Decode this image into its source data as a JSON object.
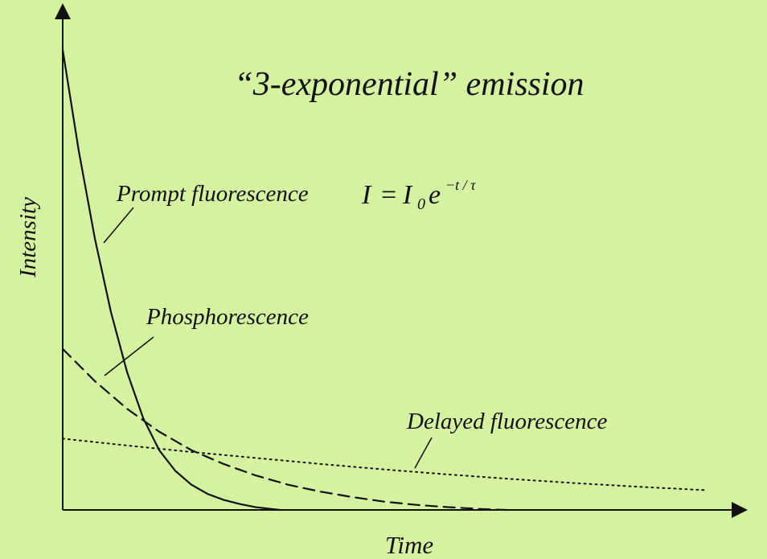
{
  "chart_data": {
    "type": "line",
    "title": "“3-exponential” emission",
    "xlabel": "Time",
    "ylabel": "Intensity",
    "formula": {
      "lhs": "I",
      "eq": "=",
      "base": "I",
      "sub": "0",
      "exp_base": "e",
      "exponent": "−t / τ"
    },
    "x_range": [
      0,
      10
    ],
    "y_range": [
      0,
      1
    ],
    "series": [
      {
        "name": "Prompt fluorescence",
        "style": "solid",
        "x": [
          0,
          0.25,
          0.5,
          0.75,
          1.0,
          1.25,
          1.5,
          1.75,
          2.0,
          2.25,
          2.5,
          2.75,
          3.0,
          3.25,
          3.38
        ],
        "y": [
          1.0,
          0.78,
          0.59,
          0.43,
          0.3,
          0.2,
          0.13,
          0.085,
          0.055,
          0.035,
          0.022,
          0.013,
          0.006,
          0.002,
          0.0
        ]
      },
      {
        "name": "Phosphorescence",
        "style": "dashed",
        "x": [
          0,
          0.5,
          1.0,
          1.5,
          2.0,
          2.5,
          3.0,
          3.5,
          4.0,
          4.5,
          5.0,
          5.5,
          6.0,
          6.5,
          6.9
        ],
        "y": [
          0.35,
          0.28,
          0.22,
          0.17,
          0.13,
          0.1,
          0.075,
          0.055,
          0.04,
          0.028,
          0.018,
          0.011,
          0.006,
          0.002,
          0.0
        ]
      },
      {
        "name": "Delayed fluorescence",
        "style": "dotted",
        "x": [
          0,
          1,
          2,
          3,
          4,
          5,
          6,
          7,
          8,
          9,
          10
        ],
        "y": [
          0.155,
          0.14,
          0.126,
          0.113,
          0.1,
          0.088,
          0.077,
          0.067,
          0.058,
          0.05,
          0.043
        ]
      }
    ],
    "grid": false,
    "legend": "inline labels"
  }
}
